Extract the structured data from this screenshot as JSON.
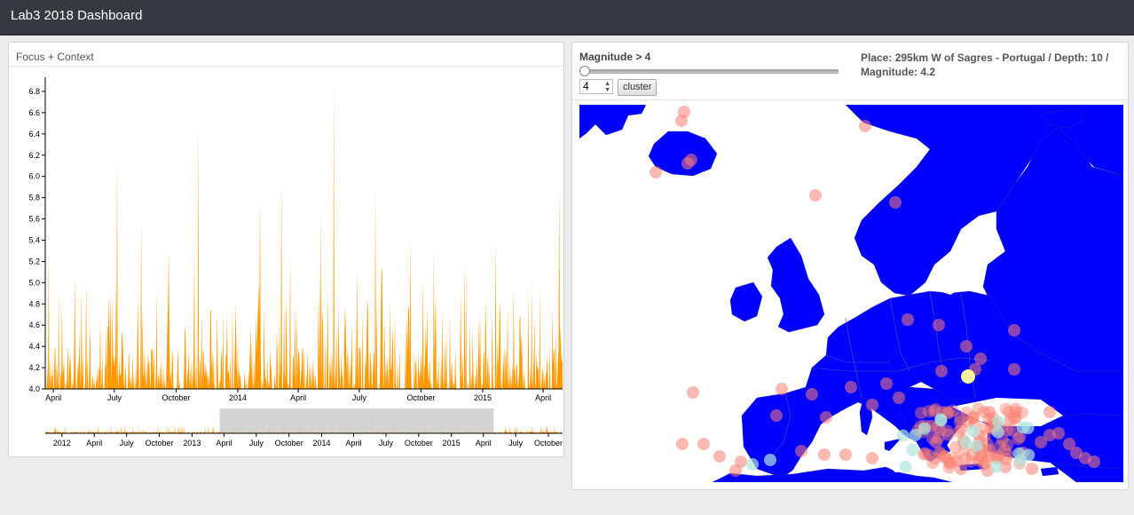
{
  "app": {
    "title": "Lab3 2018 Dashboard"
  },
  "focus_panel": {
    "title": "Focus + Context",
    "focus_x_ticks": [
      "April",
      "July",
      "October",
      "2014",
      "April",
      "July",
      "October",
      "2015",
      "April"
    ],
    "focus_y_ticks": [
      "4.0",
      "4.2",
      "4.4",
      "4.6",
      "4.8",
      "5.0",
      "5.2",
      "5.4",
      "5.6",
      "5.8",
      "6.0",
      "6.2",
      "6.4",
      "6.6",
      "6.8"
    ],
    "context_x_ticks": [
      "2012",
      "April",
      "July",
      "October",
      "2013",
      "April",
      "July",
      "October",
      "2014",
      "April",
      "July",
      "October",
      "2015",
      "April",
      "July",
      "October"
    ],
    "colors": {
      "area": "#ff9900",
      "brush": "#cccccc"
    }
  },
  "map_panel": {
    "magnitude_label": "Magnitude > 4",
    "slider_value": 4,
    "input_value": "4",
    "cluster_label": "cluster",
    "info_text": "Place: 295km W of Sagres - Portugal / Depth: 10 / Magnitude: 4.2",
    "colors": {
      "land": "#0000ff",
      "sea": "#ffffff",
      "quake": "#fa8072",
      "cluster": "#aee6dc",
      "highlight": "#ffff99"
    }
  },
  "chart_data": {
    "type": "area",
    "title": "Focus + Context",
    "xlabel": "",
    "ylabel": "",
    "ylim": [
      4.0,
      6.9
    ],
    "focus_range": [
      "2013-03-20",
      "2015-04-30"
    ],
    "context_range": [
      "2011-11-15",
      "2015-11-10"
    ],
    "brush": [
      "2013-03-20",
      "2015-04-30"
    ],
    "peaks": [
      {
        "x": "2013-03-25",
        "y": 5.3
      },
      {
        "x": "2013-05-20",
        "y": 5.0
      },
      {
        "x": "2013-07-05",
        "y": 6.2
      },
      {
        "x": "2013-08-10",
        "y": 5.6
      },
      {
        "x": "2013-09-20",
        "y": 5.3
      },
      {
        "x": "2013-10-28",
        "y": 5.3
      },
      {
        "x": "2013-11-03",
        "y": 6.5
      },
      {
        "x": "2014-02-03",
        "y": 5.8
      },
      {
        "x": "2014-03-07",
        "y": 6.0
      },
      {
        "x": "2014-03-20",
        "y": 5.3
      },
      {
        "x": "2014-05-05",
        "y": 5.7
      },
      {
        "x": "2014-05-24",
        "y": 6.9
      },
      {
        "x": "2014-07-25",
        "y": 5.9
      },
      {
        "x": "2014-09-15",
        "y": 5.4
      },
      {
        "x": "2014-10-20",
        "y": 5.3
      },
      {
        "x": "2014-12-05",
        "y": 5.2
      },
      {
        "x": "2015-01-20",
        "y": 5.4
      },
      {
        "x": "2015-03-15",
        "y": 5.0
      },
      {
        "x": "2015-04-25",
        "y": 5.9
      }
    ]
  }
}
